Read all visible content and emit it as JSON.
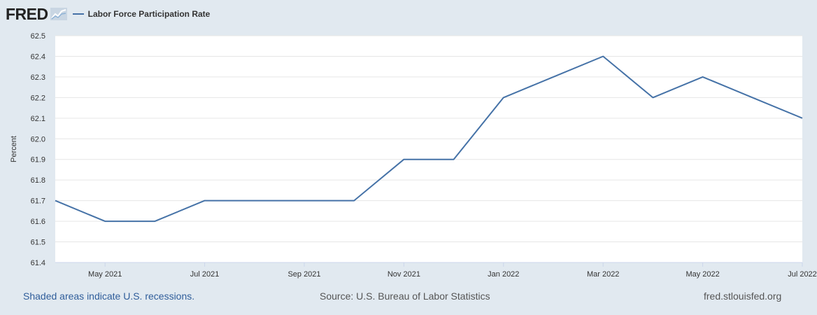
{
  "header": {
    "logo_text": "FRED",
    "legend_label": "Labor Force Participation Rate",
    "series_color": "#4572a7"
  },
  "footer": {
    "recession_note": "Shaded areas indicate U.S. recessions.",
    "source": "Source: U.S. Bureau of Labor Statistics",
    "site": "fred.stlouisfed.org"
  },
  "chart_data": {
    "type": "line",
    "title": "",
    "xlabel": "",
    "ylabel": "Percent",
    "ylim": [
      61.4,
      62.5
    ],
    "yticks": [
      "61.4",
      "61.5",
      "61.6",
      "61.7",
      "61.8",
      "61.9",
      "62.0",
      "62.1",
      "62.2",
      "62.3",
      "62.4",
      "62.5"
    ],
    "xticks": [
      "May 2021",
      "Jul 2021",
      "Sep 2021",
      "Nov 2021",
      "Jan 2022",
      "Mar 2022",
      "May 2022",
      "Jul 2022"
    ],
    "x": [
      "2021-04",
      "2021-05",
      "2021-06",
      "2021-07",
      "2021-08",
      "2021-09",
      "2021-10",
      "2021-11",
      "2021-12",
      "2022-01",
      "2022-02",
      "2022-03",
      "2022-04",
      "2022-05",
      "2022-06",
      "2022-07"
    ],
    "series": [
      {
        "name": "Labor Force Participation Rate",
        "values": [
          61.7,
          61.6,
          61.6,
          61.7,
          61.7,
          61.7,
          61.7,
          61.9,
          61.9,
          62.2,
          62.3,
          62.4,
          62.2,
          62.3,
          62.2,
          62.1
        ]
      }
    ],
    "grid": true,
    "legend": "top-left",
    "colors": {
      "plot_background": "#ffffff",
      "page_background": "#e1e9f0",
      "grid": "#e6e6e6"
    }
  }
}
